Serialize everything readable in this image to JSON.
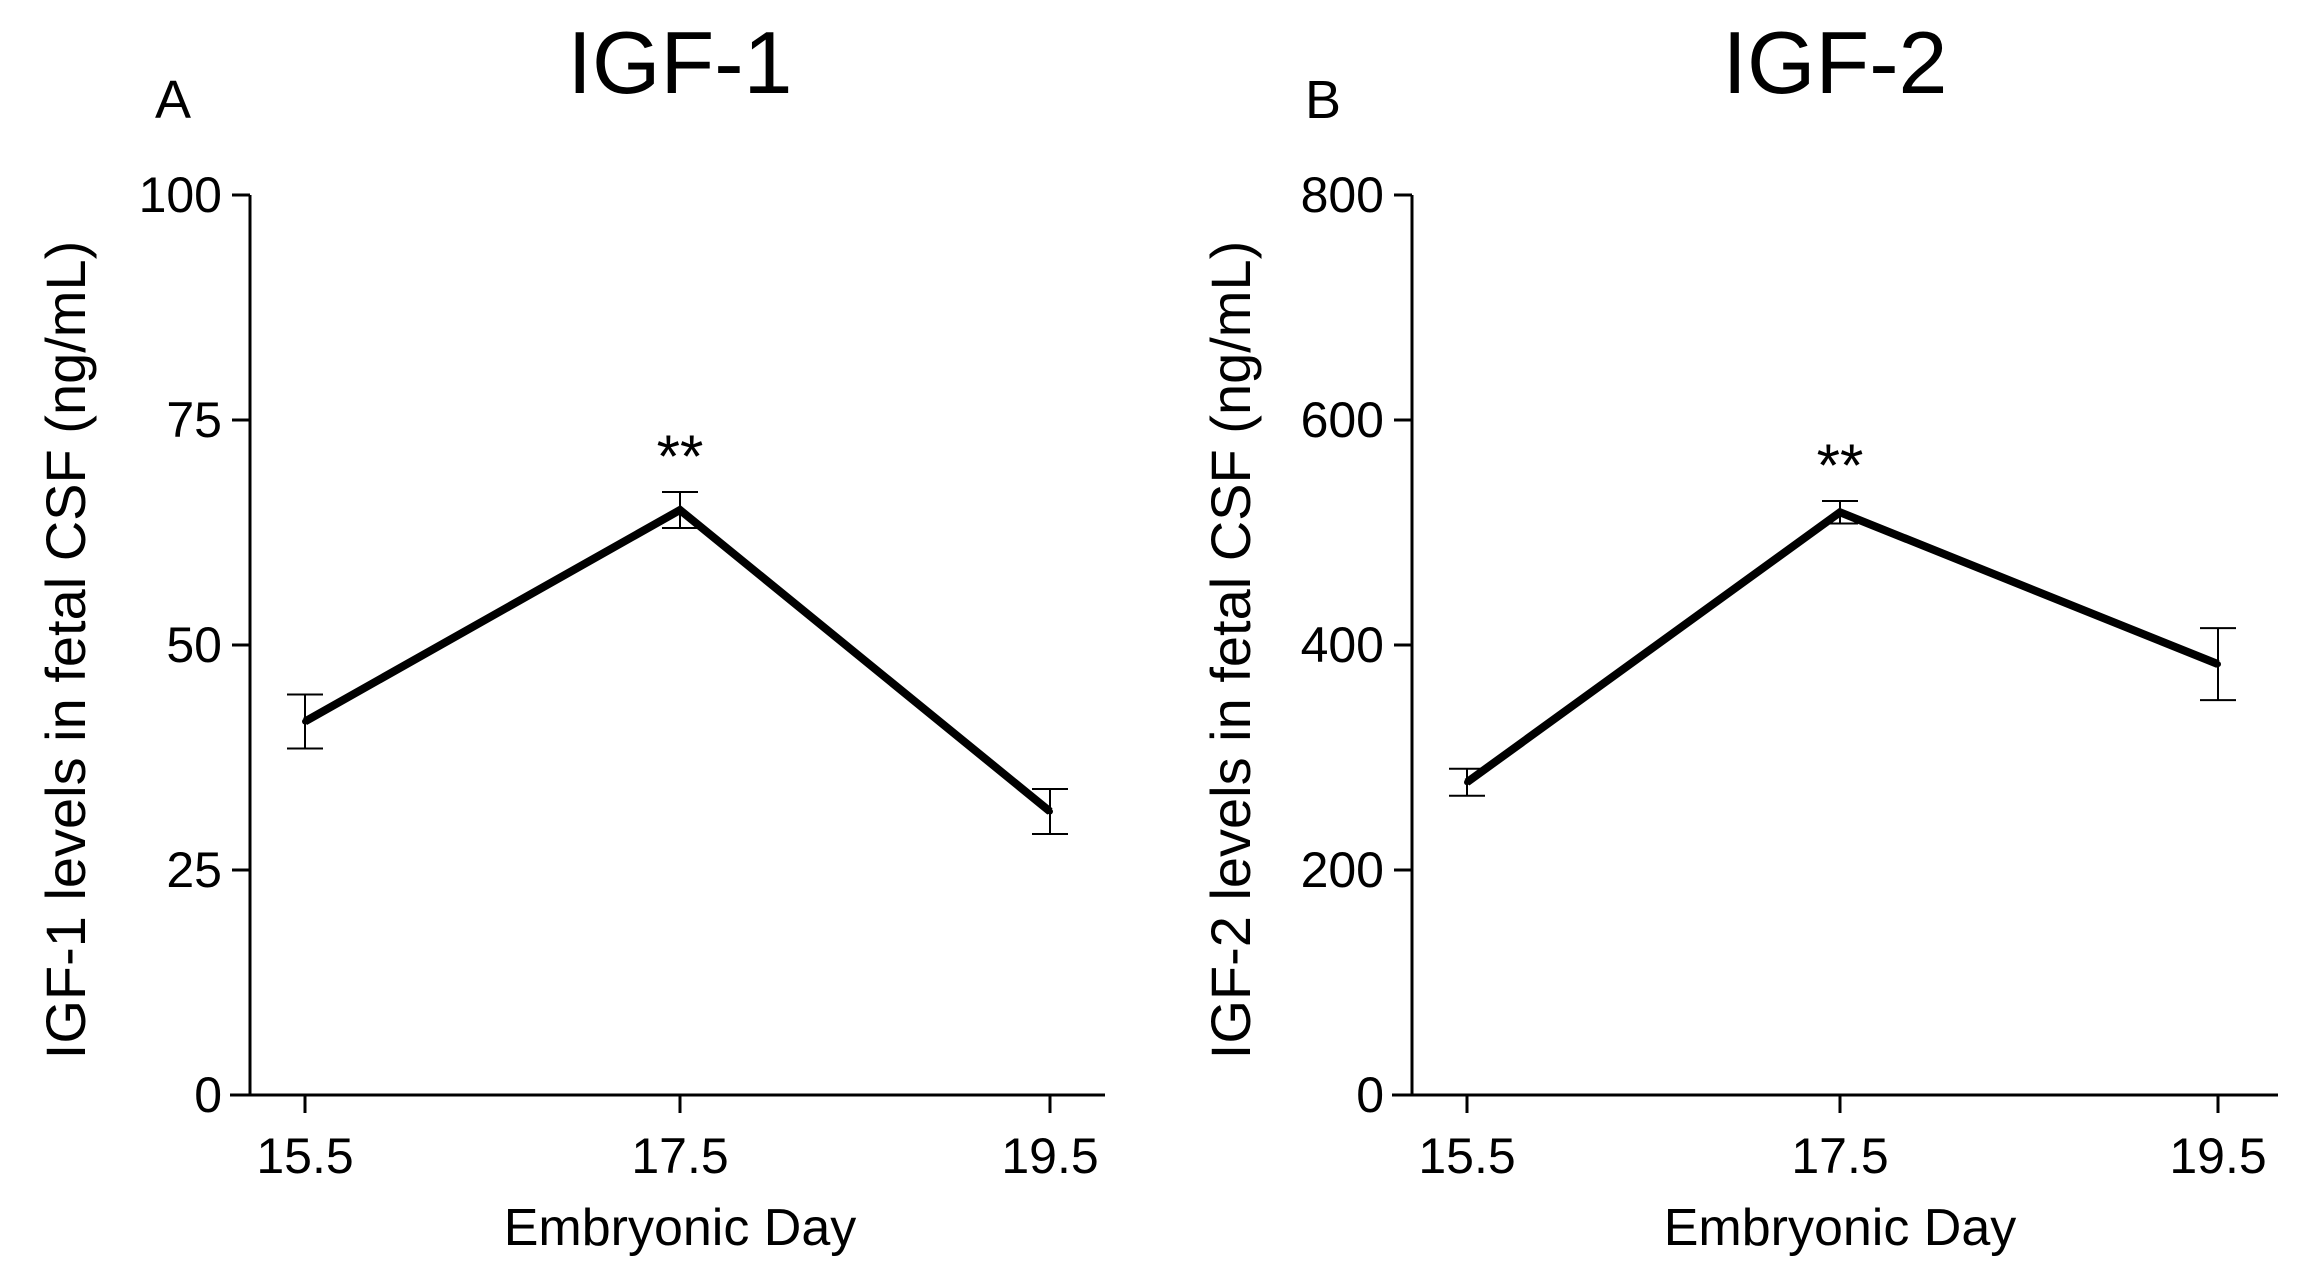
{
  "chart_data": [
    {
      "type": "line",
      "panel_label": "A",
      "title": "IGF-1",
      "xlabel": "Embryonic Day",
      "ylabel": "IGF-1 levels in fetal CSF (ng/mL)",
      "x": [
        "15.5",
        "17.5",
        "19.5"
      ],
      "values": [
        41.5,
        65,
        31.5
      ],
      "errors": [
        3,
        2,
        2.5
      ],
      "ylim": [
        0,
        100
      ],
      "yticks": [
        0,
        25,
        50,
        75,
        100
      ],
      "annotations": [
        {
          "x": "17.5",
          "text": "**"
        }
      ],
      "grid": false,
      "legend": "none"
    },
    {
      "type": "line",
      "panel_label": "B",
      "title": "IGF-2",
      "xlabel": "Embryonic Day",
      "ylabel": "IGF-2 levels in fetal CSF (ng/mL)",
      "x": [
        "15.5",
        "17.5",
        "19.5"
      ],
      "values": [
        278,
        518,
        383
      ],
      "errors": [
        12,
        10,
        32
      ],
      "ylim": [
        0,
        800
      ],
      "yticks": [
        0,
        200,
        400,
        600,
        800
      ],
      "annotations": [
        {
          "x": "17.5",
          "text": "**"
        }
      ],
      "grid": false,
      "legend": "none"
    }
  ]
}
